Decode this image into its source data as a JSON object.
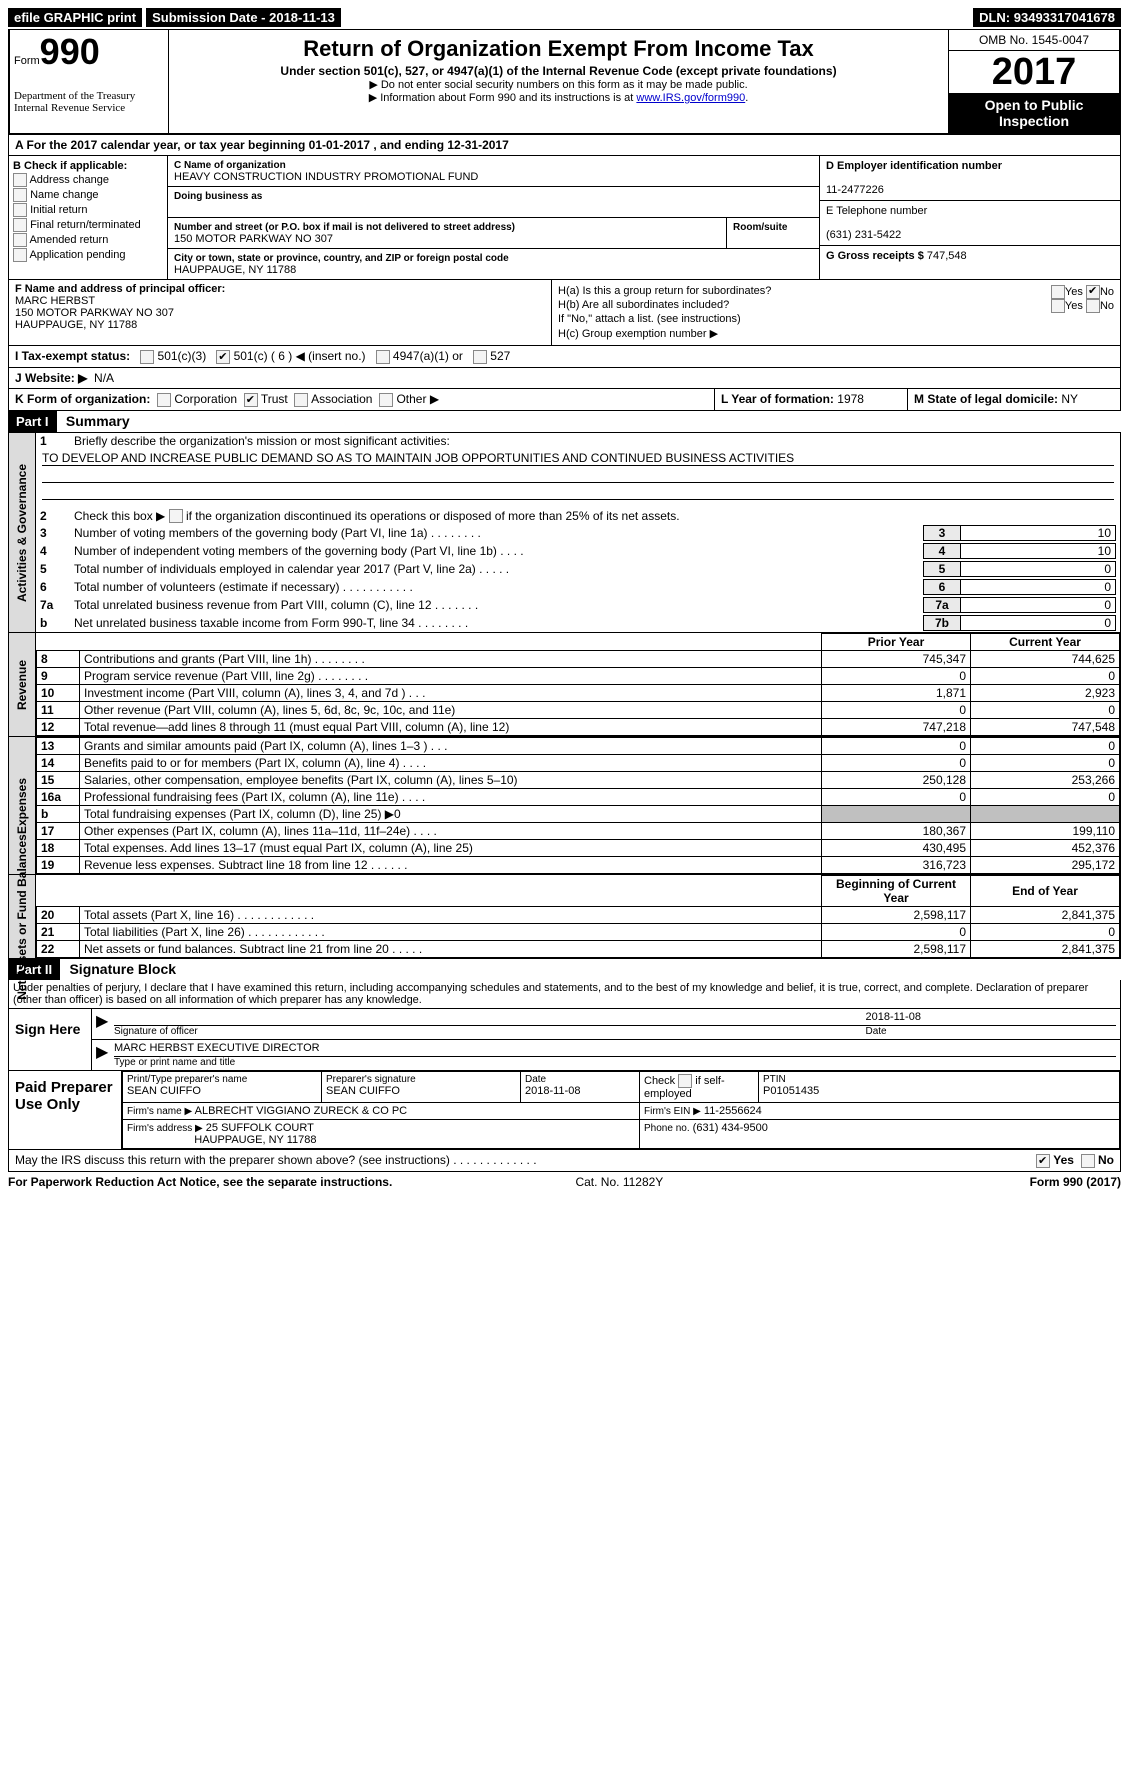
{
  "top": {
    "efile": "efile GRAPHIC print",
    "sub_label": "Submission Date",
    "sub_date": "2018-11-13",
    "dln_label": "DLN:",
    "dln": "93493317041678"
  },
  "header": {
    "form_prefix": "Form",
    "form_number": "990",
    "dept1": "Department of the Treasury",
    "dept2": "Internal Revenue Service",
    "title": "Return of Organization Exempt From Income Tax",
    "subtitle": "Under section 501(c), 527, or 4947(a)(1) of the Internal Revenue Code (except private foundations)",
    "note1": "▶ Do not enter social security numbers on this form as it may be made public.",
    "note2_a": "▶ Information about Form 990 and its instructions is at ",
    "note2_link": "www.IRS.gov/form990",
    "omb": "OMB No. 1545-0047",
    "year": "2017",
    "inspect1": "Open to Public",
    "inspect2": "Inspection"
  },
  "sectionA": "A  For the 2017 calendar year, or tax year beginning 01-01-2017    , and ending 12-31-2017",
  "colB": {
    "label": "B Check if applicable:",
    "items": [
      "Address change",
      "Name change",
      "Initial return",
      "Final return/terminated",
      "Amended return",
      "Application pending"
    ]
  },
  "colC": {
    "name_label": "C Name of organization",
    "name": "HEAVY CONSTRUCTION INDUSTRY PROMOTIONAL FUND",
    "dba_label": "Doing business as",
    "street_label": "Number and street (or P.O. box if mail is not delivered to street address)",
    "room_label": "Room/suite",
    "street": "150 MOTOR PARKWAY NO 307",
    "city_label": "City or town, state or province, country, and ZIP or foreign postal code",
    "city": "HAUPPAUGE, NY  11788"
  },
  "colD": {
    "ein_label": "D Employer identification number",
    "ein": "11-2477226",
    "tel_label": "E Telephone number",
    "tel": "(631) 231-5422",
    "gross_label": "G Gross receipts $",
    "gross": "747,548"
  },
  "officer": {
    "label": "F Name and address of principal officer:",
    "name": "MARC HERBST",
    "addr1": "150 MOTOR PARKWAY NO 307",
    "addr2": "HAUPPAUGE, NY  11788"
  },
  "h": {
    "ha": "H(a)  Is this a group return for subordinates?",
    "hb": "H(b)  Are all subordinates included?",
    "hb_note": "If \"No,\" attach a list. (see instructions)",
    "hc": "H(c)  Group exemption number ▶",
    "yes": "Yes",
    "no": "No"
  },
  "status": {
    "label": "I  Tax-exempt status:",
    "c3": "501(c)(3)",
    "c": "501(c) (",
    "c_num": "6",
    "c_suffix": ") ◀ (insert no.)",
    "a1": "4947(a)(1) or",
    "s527": "527"
  },
  "website": {
    "label": "J  Website: ▶",
    "value": "N/A"
  },
  "formOrg": {
    "k": "K Form of organization:",
    "corp": "Corporation",
    "trust": "Trust",
    "assoc": "Association",
    "other": "Other ▶",
    "l": "L Year of formation:",
    "l_val": "1978",
    "m": "M State of legal domicile:",
    "m_val": "NY"
  },
  "part1": {
    "header": "Part I",
    "title": "Summary",
    "gov_label": "Activities & Governance",
    "rev_label": "Revenue",
    "exp_label": "Expenses",
    "net_label": "Net Assets or Fund Balances",
    "l1": "Briefly describe the organization's mission or most significant activities:",
    "l1_text": "TO DEVELOP AND INCREASE PUBLIC DEMAND SO AS TO MAINTAIN JOB OPPORTUNITIES AND CONTINUED BUSINESS ACTIVITIES",
    "l2": "Check this box ▶   if the organization discontinued its operations or disposed of more than 25% of its net assets.",
    "lines_gov": [
      {
        "n": "3",
        "t": "Number of voting members of the governing body (Part VI, line 1a)  .    .    .    .    .    .    .    .",
        "b": "3",
        "v": "10"
      },
      {
        "n": "4",
        "t": "Number of independent voting members of the governing body (Part VI, line 1b)    .    .    .    .",
        "b": "4",
        "v": "10"
      },
      {
        "n": "5",
        "t": "Total number of individuals employed in calendar year 2017 (Part V, line 2a)  .    .    .    .    .",
        "b": "5",
        "v": "0"
      },
      {
        "n": "6",
        "t": "Total number of volunteers (estimate if necessary)   .    .    .    .    .    .    .    .    .    .    .",
        "b": "6",
        "v": "0"
      },
      {
        "n": "7a",
        "t": "Total unrelated business revenue from Part VIII, column (C), line 12   .    .    .    .    .    .    .",
        "b": "7a",
        "v": "0"
      },
      {
        "n": "b",
        "t": "Net unrelated business taxable income from Form 990-T, line 34   .    .    .    .    .    .    .    .",
        "b": "7b",
        "v": "0"
      }
    ],
    "rev_hdr": {
      "py": "Prior Year",
      "cy": "Current Year"
    },
    "rev_rows": [
      {
        "n": "8",
        "t": "Contributions and grants (Part VIII, line 1h)   .    .    .    .    .    .    .    .",
        "py": "745,347",
        "cy": "744,625"
      },
      {
        "n": "9",
        "t": "Program service revenue (Part VIII, line 2g)    .    .    .    .    .    .    .    .",
        "py": "0",
        "cy": "0"
      },
      {
        "n": "10",
        "t": "Investment income (Part VIII, column (A), lines 3, 4, and 7d )    .    .    .",
        "py": "1,871",
        "cy": "2,923"
      },
      {
        "n": "11",
        "t": "Other revenue (Part VIII, column (A), lines 5, 6d, 8c, 9c, 10c, and 11e)",
        "py": "0",
        "cy": "0"
      },
      {
        "n": "12",
        "t": "Total revenue—add lines 8 through 11 (must equal Part VIII, column (A), line 12)",
        "py": "747,218",
        "cy": "747,548"
      }
    ],
    "exp_rows": [
      {
        "n": "13",
        "t": "Grants and similar amounts paid (Part IX, column (A), lines 1–3 )   .    .    .",
        "py": "0",
        "cy": "0"
      },
      {
        "n": "14",
        "t": "Benefits paid to or for members (Part IX, column (A), line 4)   .    .    .    .",
        "py": "0",
        "cy": "0"
      },
      {
        "n": "15",
        "t": "Salaries, other compensation, employee benefits (Part IX, column (A), lines 5–10)",
        "py": "250,128",
        "cy": "253,266"
      },
      {
        "n": "16a",
        "t": "Professional fundraising fees (Part IX, column (A), line 11e)    .    .    .    .",
        "py": "0",
        "cy": "0"
      },
      {
        "n": "b",
        "t": "Total fundraising expenses (Part IX, column (D), line 25) ▶0",
        "py": "gray",
        "cy": "gray"
      },
      {
        "n": "17",
        "t": "Other expenses (Part IX, column (A), lines 11a–11d, 11f–24e)    .    .    .    .",
        "py": "180,367",
        "cy": "199,110"
      },
      {
        "n": "18",
        "t": "Total expenses. Add lines 13–17 (must equal Part IX, column (A), line 25)",
        "py": "430,495",
        "cy": "452,376"
      },
      {
        "n": "19",
        "t": "Revenue less expenses. Subtract line 18 from line 12    .    .    .    .    .    .",
        "py": "316,723",
        "cy": "295,172"
      }
    ],
    "net_hdr": {
      "py": "Beginning of Current Year",
      "cy": "End of Year"
    },
    "net_rows": [
      {
        "n": "20",
        "t": "Total assets (Part X, line 16)   .    .    .    .    .    .    .    .    .    .    .    .",
        "py": "2,598,117",
        "cy": "2,841,375"
      },
      {
        "n": "21",
        "t": "Total liabilities (Part X, line 26)   .    .    .    .    .    .    .    .    .    .    .    .",
        "py": "0",
        "cy": "0"
      },
      {
        "n": "22",
        "t": "Net assets or fund balances. Subtract line 21 from line 20 .    .    .    .    .",
        "py": "2,598,117",
        "cy": "2,841,375"
      }
    ]
  },
  "part2": {
    "header": "Part II",
    "title": "Signature Block",
    "perjury": "Under penalties of perjury, I declare that I have examined this return, including accompanying schedules and statements, and to the best of my knowledge and belief, it is true, correct, and complete. Declaration of preparer (other than officer) is based on all information of which preparer has any knowledge.",
    "sign_here": "Sign Here",
    "sig_officer": "Signature of officer",
    "sig_date": "2018-11-08",
    "date_cap": "Date",
    "name_title": "MARC HERBST  EXECUTIVE DIRECTOR",
    "name_cap": "Type or print name and title"
  },
  "prep": {
    "label": "Paid Preparer Use Only",
    "p_name_cap": "Print/Type preparer's name",
    "p_name": "SEAN CUIFFO",
    "p_sig_cap": "Preparer's signature",
    "p_sig": "SEAN CUIFFO",
    "p_date_cap": "Date",
    "p_date": "2018-11-08",
    "p_check": "Check    if self-employed",
    "ptin_cap": "PTIN",
    "ptin": "P01051435",
    "firm_name_cap": "Firm's name      ▶",
    "firm_name": "ALBRECHT VIGGIANO ZURECK & CO PC",
    "firm_ein_cap": "Firm's EIN ▶",
    "firm_ein": "11-2556624",
    "firm_addr_cap": "Firm's address ▶",
    "firm_addr1": "25 SUFFOLK COURT",
    "firm_addr2": "HAUPPAUGE, NY  11788",
    "phone_cap": "Phone no.",
    "phone": "(631) 434-9500"
  },
  "discuss": {
    "text": "May the IRS discuss this return with the preparer shown above? (see instructions)   .    .    .    .    .    .    .    .    .    .    .    .    .",
    "yes": "Yes",
    "no": "No"
  },
  "footer": {
    "left": "For Paperwork Reduction Act Notice, see the separate instructions.",
    "center": "Cat. No. 11282Y",
    "right": "Form 990 (2017)"
  }
}
